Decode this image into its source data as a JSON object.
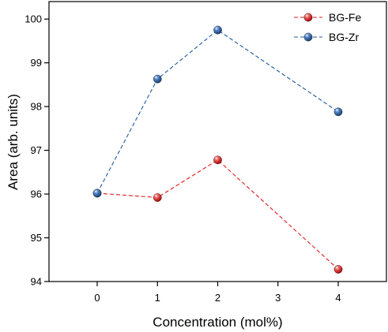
{
  "chart_data": {
    "type": "line",
    "title": "",
    "xlabel": "Concentration (mol%)",
    "ylabel": "Area (arb. units)",
    "xlim": [
      -0.8,
      4.8
    ],
    "ylim": [
      94,
      100.4
    ],
    "x_ticks": [
      "0",
      "1",
      "2",
      "3",
      "4"
    ],
    "y_ticks": [
      "94",
      "95",
      "96",
      "97",
      "98",
      "99",
      "100"
    ],
    "grid": false,
    "legend_position": "top-right",
    "series": [
      {
        "name": "BG-Fe",
        "color": "#e41a1c",
        "line_style": "dashed",
        "marker": "sphere",
        "x": [
          0,
          1,
          2,
          4
        ],
        "values": [
          96.02,
          95.92,
          96.78,
          94.28
        ]
      },
      {
        "name": "BG-Zr",
        "color": "#1f5aa0",
        "line_style": "dashed",
        "marker": "sphere",
        "x": [
          0,
          1,
          2,
          4
        ],
        "values": [
          96.02,
          98.63,
          99.75,
          97.88
        ]
      }
    ]
  }
}
